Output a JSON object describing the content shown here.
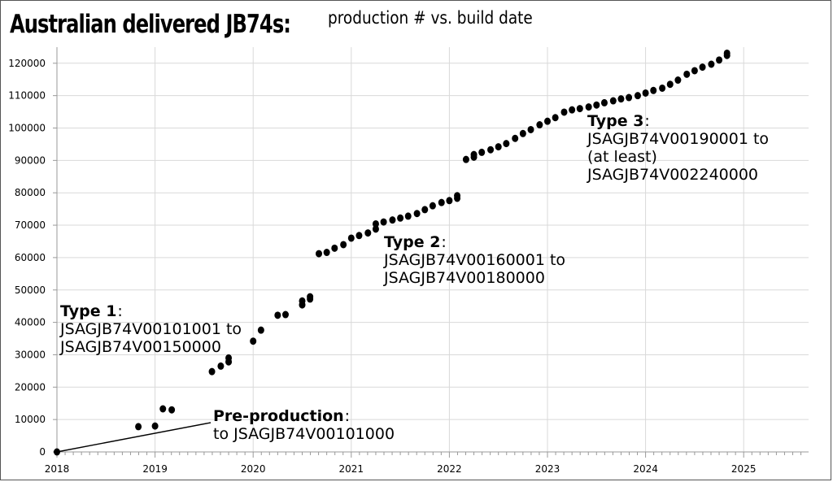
{
  "chart_data": {
    "type": "scatter",
    "title": "Australian delivered JB74s:",
    "subtitle": "production # vs. build date",
    "xlabel": "",
    "ylabel": "",
    "xlim": [
      2018,
      2025.65
    ],
    "ylim": [
      0,
      125000
    ],
    "x_ticks": [
      "2018",
      "2019",
      "2020",
      "2021",
      "2022",
      "2023",
      "2024",
      "2025"
    ],
    "y_ticks": [
      "0",
      "10000",
      "20000",
      "30000",
      "40000",
      "50000",
      "60000",
      "70000",
      "80000",
      "90000",
      "100000",
      "110000",
      "120000"
    ],
    "grid": true,
    "points": [
      [
        2018.0,
        0
      ],
      [
        2018.83,
        7800
      ],
      [
        2019.0,
        8000
      ],
      [
        2019.08,
        13300
      ],
      [
        2019.17,
        13000
      ],
      [
        2019.58,
        24800
      ],
      [
        2019.67,
        26500
      ],
      [
        2019.75,
        27800
      ],
      [
        2019.75,
        29000
      ],
      [
        2020.0,
        34200
      ],
      [
        2020.08,
        37600
      ],
      [
        2020.25,
        42200
      ],
      [
        2020.33,
        42400
      ],
      [
        2020.5,
        45400
      ],
      [
        2020.5,
        46600
      ],
      [
        2020.58,
        47200
      ],
      [
        2020.58,
        47900
      ],
      [
        2020.67,
        61200
      ],
      [
        2020.75,
        61600
      ],
      [
        2020.83,
        62900
      ],
      [
        2020.92,
        64000
      ],
      [
        2021.0,
        66000
      ],
      [
        2021.08,
        66800
      ],
      [
        2021.17,
        67600
      ],
      [
        2021.25,
        68800
      ],
      [
        2021.25,
        70400
      ],
      [
        2021.33,
        71000
      ],
      [
        2021.42,
        71600
      ],
      [
        2021.5,
        72200
      ],
      [
        2021.58,
        72800
      ],
      [
        2021.67,
        73600
      ],
      [
        2021.75,
        74800
      ],
      [
        2021.83,
        76000
      ],
      [
        2021.92,
        77000
      ],
      [
        2022.0,
        77600
      ],
      [
        2022.08,
        78300
      ],
      [
        2022.08,
        79100
      ],
      [
        2022.17,
        90300
      ],
      [
        2022.25,
        91000
      ],
      [
        2022.25,
        91800
      ],
      [
        2022.33,
        92500
      ],
      [
        2022.42,
        93300
      ],
      [
        2022.5,
        94200
      ],
      [
        2022.58,
        95200
      ],
      [
        2022.67,
        96800
      ],
      [
        2022.75,
        98300
      ],
      [
        2022.83,
        99500
      ],
      [
        2022.92,
        101000
      ],
      [
        2023.0,
        102100
      ],
      [
        2023.08,
        103200
      ],
      [
        2023.17,
        104900
      ],
      [
        2023.25,
        105600
      ],
      [
        2023.33,
        106000
      ],
      [
        2023.42,
        106500
      ],
      [
        2023.5,
        107100
      ],
      [
        2023.58,
        107800
      ],
      [
        2023.67,
        108400
      ],
      [
        2023.75,
        109000
      ],
      [
        2023.83,
        109400
      ],
      [
        2023.92,
        110000
      ],
      [
        2024.0,
        110800
      ],
      [
        2024.08,
        111600
      ],
      [
        2024.17,
        112300
      ],
      [
        2024.25,
        113500
      ],
      [
        2024.33,
        114800
      ],
      [
        2024.42,
        116600
      ],
      [
        2024.5,
        117700
      ],
      [
        2024.58,
        118800
      ],
      [
        2024.67,
        119700
      ],
      [
        2024.75,
        121000
      ],
      [
        2024.83,
        122400
      ],
      [
        2024.83,
        123100
      ]
    ],
    "annotations": [
      {
        "title": "Pre-production",
        "lines": [
          "to JSAGJB74V00101000"
        ]
      },
      {
        "title": "Type 1",
        "lines": [
          "JSAGJB74V00101001 to",
          "JSAGJB74V00150000"
        ]
      },
      {
        "title": "Type 2",
        "lines": [
          "JSAGJB74V00160001 to",
          "JSAGJB74V00180000"
        ]
      },
      {
        "title": "Type 3",
        "lines": [
          "JSAGJB74V00190001 to",
          "(at least)",
          "JSAGJB74V002240000"
        ]
      }
    ]
  }
}
